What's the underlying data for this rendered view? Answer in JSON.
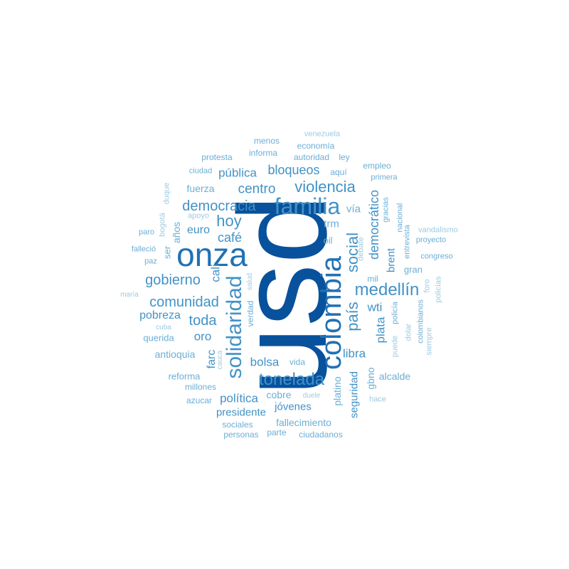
{
  "words": [
    {
      "text": "usd",
      "weight": 1,
      "color": "#08519c"
    },
    {
      "text": "onza",
      "weight": 2,
      "color": "#2171b5"
    },
    {
      "text": "colombia",
      "weight": 3,
      "color": "#2171b5"
    },
    {
      "text": "familia",
      "weight": 4,
      "color": "#4292c6"
    },
    {
      "text": "solidaridad",
      "weight": 5,
      "color": "#4292c6"
    },
    {
      "text": "tonelada",
      "weight": 6,
      "color": "#4292c6"
    },
    {
      "text": "medellín",
      "weight": 7,
      "color": "#4292c6"
    },
    {
      "text": "país",
      "weight": 8,
      "color": "#4292c6"
    },
    {
      "text": "social",
      "weight": 9,
      "color": "#4292c6"
    },
    {
      "text": "violencia",
      "weight": 10,
      "color": "#4292c6"
    },
    {
      "text": "democracia",
      "weight": 11,
      "color": "#4292c6"
    },
    {
      "text": "hoy",
      "weight": 12,
      "color": "#4292c6"
    },
    {
      "text": "gobierno",
      "weight": 13,
      "color": "#4292c6"
    },
    {
      "text": "comunidad",
      "weight": 14,
      "color": "#4292c6"
    },
    {
      "text": "centro",
      "weight": 15,
      "color": "#4292c6"
    },
    {
      "text": "bloqueos",
      "weight": 16,
      "color": "#4292c6"
    },
    {
      "text": "democrático",
      "weight": 17,
      "color": "#4292c6"
    },
    {
      "text": "toda",
      "weight": 18,
      "color": "#4292c6"
    },
    {
      "text": "café",
      "weight": 19,
      "color": "#4292c6"
    },
    {
      "text": "pública",
      "weight": 20,
      "color": "#4292c6"
    },
    {
      "text": "euro",
      "weight": 21,
      "color": "#4292c6"
    },
    {
      "text": "oro",
      "weight": 22,
      "color": "#4292c6"
    },
    {
      "text": "bolsa",
      "weight": 23,
      "color": "#4292c6"
    },
    {
      "text": "plata",
      "weight": 24,
      "color": "#4292c6"
    },
    {
      "text": "política",
      "weight": 25,
      "color": "#4292c6"
    },
    {
      "text": "pobreza",
      "weight": 26,
      "color": "#4292c6"
    },
    {
      "text": "libra",
      "weight": 27,
      "color": "#4292c6"
    },
    {
      "text": "wti",
      "weight": 28,
      "color": "#4292c6"
    },
    {
      "text": "cali",
      "weight": 29,
      "color": "#4292c6"
    },
    {
      "text": "farc",
      "weight": 30,
      "color": "#4292c6"
    },
    {
      "text": "brent",
      "weight": 31,
      "color": "#4292c6"
    },
    {
      "text": "presidente",
      "weight": 32,
      "color": "#4292c6"
    },
    {
      "text": "jóvenes",
      "weight": 33,
      "color": "#4292c6"
    },
    {
      "text": "seguridad",
      "weight": 34,
      "color": "#4292c6"
    },
    {
      "text": "vía",
      "weight": 35,
      "color": "#6baed6"
    },
    {
      "text": "trm",
      "weight": 36,
      "color": "#6baed6"
    },
    {
      "text": "fuerza",
      "weight": 37,
      "color": "#6baed6"
    },
    {
      "text": "años",
      "weight": 38,
      "color": "#6baed6"
    },
    {
      "text": "antioquia",
      "weight": 39,
      "color": "#6baed6"
    },
    {
      "text": "cobre",
      "weight": 40,
      "color": "#6baed6"
    },
    {
      "text": "platino",
      "weight": 41,
      "color": "#6baed6"
    },
    {
      "text": "gbno",
      "weight": 42,
      "color": "#6baed6"
    },
    {
      "text": "alcalde",
      "weight": 43,
      "color": "#6baed6"
    },
    {
      "text": "fallecimiento",
      "weight": 44,
      "color": "#6baed6"
    },
    {
      "text": "gran",
      "weight": 45,
      "color": "#6baed6"
    },
    {
      "text": "querida",
      "weight": 46,
      "color": "#6baed6"
    },
    {
      "text": "reforma",
      "weight": 47,
      "color": "#6baed6"
    },
    {
      "text": "verdad",
      "weight": 48,
      "color": "#6baed6"
    },
    {
      "text": "ser",
      "weight": 49,
      "color": "#6baed6"
    },
    {
      "text": "oil",
      "weight": 50,
      "color": "#6baed6"
    },
    {
      "text": "aquí",
      "weight": 51,
      "color": "#6baed6"
    },
    {
      "text": "vida",
      "weight": 52,
      "color": "#6baed6"
    },
    {
      "text": "millones",
      "weight": 53,
      "color": "#6baed6"
    },
    {
      "text": "sociales",
      "weight": 54,
      "color": "#6baed6"
    },
    {
      "text": "autoridad",
      "weight": 55,
      "color": "#6baed6"
    },
    {
      "text": "informa",
      "weight": 56,
      "color": "#6baed6"
    },
    {
      "text": "empleo",
      "weight": 57,
      "color": "#6baed6"
    },
    {
      "text": "economía",
      "weight": 58,
      "color": "#6baed6"
    },
    {
      "text": "ley",
      "weight": 59,
      "color": "#6baed6"
    },
    {
      "text": "ciudad",
      "weight": 60,
      "color": "#6baed6"
    },
    {
      "text": "protesta",
      "weight": 61,
      "color": "#6baed6"
    },
    {
      "text": "menos",
      "weight": 62,
      "color": "#6baed6"
    },
    {
      "text": "venezuela",
      "weight": 63,
      "color": "#9ecae1"
    },
    {
      "text": "primera",
      "weight": 64,
      "color": "#6baed6"
    },
    {
      "text": "gracias",
      "weight": 65,
      "color": "#6baed6"
    },
    {
      "text": "nacional",
      "weight": 66,
      "color": "#6baed6"
    },
    {
      "text": "vandalismo",
      "weight": 67,
      "color": "#9ecae1"
    },
    {
      "text": "proyecto",
      "weight": 68,
      "color": "#6baed6"
    },
    {
      "text": "entrevista",
      "weight": 69,
      "color": "#6baed6"
    },
    {
      "text": "congreso",
      "weight": 70,
      "color": "#6baed6"
    },
    {
      "text": "debate",
      "weight": 71,
      "color": "#9ecae1"
    },
    {
      "text": "mil",
      "weight": 72,
      "color": "#6baed6"
    },
    {
      "text": "policías",
      "weight": 73,
      "color": "#9ecae1"
    },
    {
      "text": "foro",
      "weight": 74,
      "color": "#9ecae1"
    },
    {
      "text": "policía",
      "weight": 75,
      "color": "#6baed6"
    },
    {
      "text": "colombianos",
      "weight": 76,
      "color": "#6baed6"
    },
    {
      "text": "dolar",
      "weight": 77,
      "color": "#9ecae1"
    },
    {
      "text": "siempre",
      "weight": 78,
      "color": "#9ecae1"
    },
    {
      "text": "puede",
      "weight": 79,
      "color": "#9ecae1"
    },
    {
      "text": "duque",
      "weight": 80,
      "color": "#9ecae1"
    },
    {
      "text": "bogotá",
      "weight": 81,
      "color": "#9ecae1"
    },
    {
      "text": "apoyo",
      "weight": 82,
      "color": "#9ecae1"
    },
    {
      "text": "paro",
      "weight": 83,
      "color": "#6baed6"
    },
    {
      "text": "falleció",
      "weight": 84,
      "color": "#6baed6"
    },
    {
      "text": "paz",
      "weight": 85,
      "color": "#6baed6"
    },
    {
      "text": "maría",
      "weight": 86,
      "color": "#9ecae1"
    },
    {
      "text": "salud",
      "weight": 87,
      "color": "#9ecae1"
    },
    {
      "text": "cuba",
      "weight": 88,
      "color": "#9ecae1"
    },
    {
      "text": "cauca",
      "weight": 89,
      "color": "#9ecae1"
    },
    {
      "text": "duele",
      "weight": 90,
      "color": "#9ecae1"
    },
    {
      "text": "hace",
      "weight": 91,
      "color": "#9ecae1"
    },
    {
      "text": "azucar",
      "weight": 92,
      "color": "#6baed6"
    },
    {
      "text": "parte",
      "weight": 93,
      "color": "#6baed6"
    },
    {
      "text": "personas",
      "weight": 94,
      "color": "#6baed6"
    },
    {
      "text": "ciudadanos",
      "weight": 95,
      "color": "#6baed6"
    }
  ]
}
